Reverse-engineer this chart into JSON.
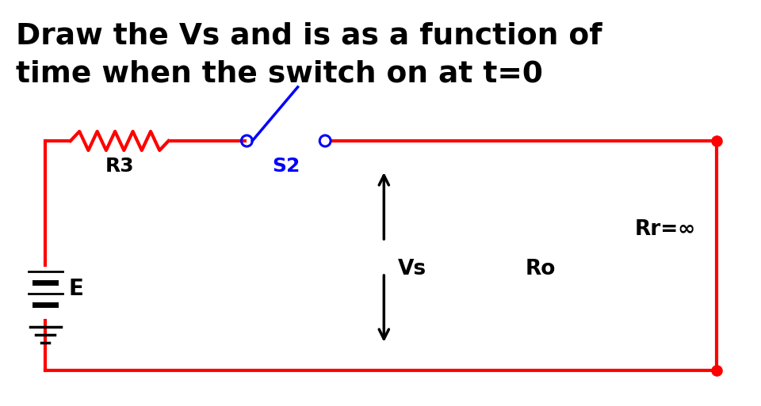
{
  "title_line1": "Draw the Vs and is as a function of",
  "title_line2": "time when the switch on at t=0",
  "bg_color": "#ffffff",
  "circuit_color": "#ff0000",
  "switch_color": "#0000ff",
  "label_R3": "R3",
  "label_S2": "S2",
  "label_Vs": "Vs",
  "label_Ro": "Ro",
  "label_Rr": "Rr=∞",
  "label_E": "E",
  "circuit_linewidth": 3.0,
  "dot_size": 80
}
